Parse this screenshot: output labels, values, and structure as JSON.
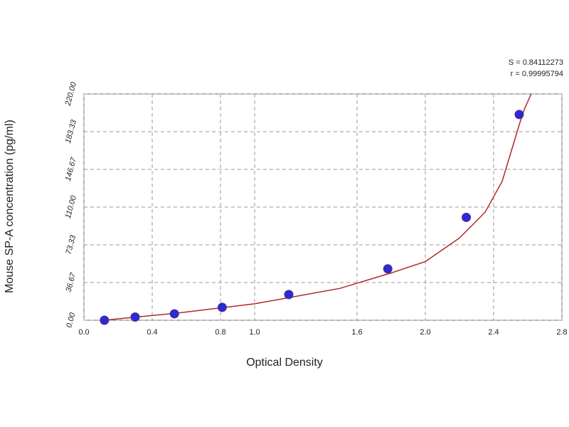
{
  "chart_data": {
    "type": "scatter",
    "xlabel": "Optical Density",
    "ylabel": "Mouse SP-A concentration (pg/ml)",
    "annotations": [
      "S = 0.84112273",
      "r = 0.99995794"
    ],
    "xlim": [
      0,
      2.8
    ],
    "ylim": [
      0,
      220
    ],
    "xticks": [
      {
        "value": 0,
        "label": "0.0"
      },
      0.4,
      0.8,
      {
        "value": 1,
        "label": "1.0"
      },
      1.6,
      {
        "value": 2,
        "label": "2.0"
      },
      2.4,
      2.8
    ],
    "yticks": [
      {
        "value": 0,
        "label": "0.00"
      },
      36.67,
      73.33,
      {
        "value": 110,
        "label": "110.00"
      },
      146.67,
      183.33,
      {
        "value": 220,
        "label": "220.00"
      }
    ],
    "grid": true,
    "series": [
      {
        "color": "#2b2bd0",
        "x": [
          0.12,
          0.3,
          0.53,
          0.81,
          1.2,
          1.78,
          2.24,
          2.55
        ],
        "values": [
          0,
          3.125,
          6.25,
          12.5,
          25,
          50,
          100,
          200
        ]
      },
      {
        "color": "#b02828",
        "x": [
          0.12,
          0.3,
          0.55,
          0.8,
          1.0,
          1.2,
          1.5,
          1.8,
          2.0,
          2.2,
          2.35,
          2.45,
          2.55,
          2.58,
          2.62
        ],
        "values": [
          0,
          3,
          7,
          12,
          16,
          22,
          31,
          46,
          57,
          80,
          105,
          135,
          190,
          205,
          220
        ]
      }
    ]
  }
}
